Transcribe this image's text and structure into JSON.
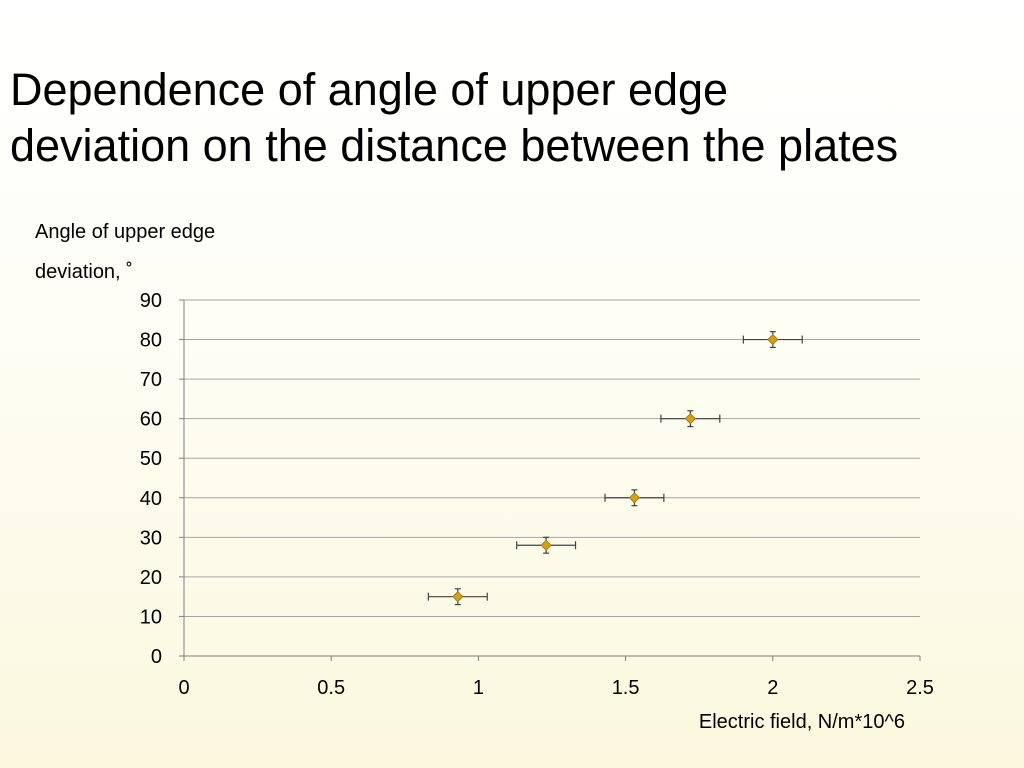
{
  "slide": {
    "title_lines": [
      "Dependence of angle of upper edge",
      "deviation on the distance between the plates"
    ]
  },
  "chart_data": {
    "type": "scatter",
    "xlabel": "Electric field, N/m*10^6",
    "ylabel_lines": [
      "Angle of upper edge",
      "deviation, ˚"
    ],
    "xlim": [
      0,
      2.5
    ],
    "ylim": [
      0,
      90
    ],
    "x_ticks": [
      0,
      0.5,
      1,
      1.5,
      2,
      2.5
    ],
    "y_ticks": [
      0,
      10,
      20,
      30,
      40,
      50,
      60,
      70,
      80,
      90
    ],
    "grid": {
      "horizontal": true,
      "vertical": false
    },
    "marker": "diamond",
    "colors": {
      "marker": "#d4a017",
      "marker_edge": "#9a7410",
      "error_bar": "#404040",
      "grid": "#a6a6a6"
    },
    "points": [
      {
        "x": 0.93,
        "y": 15,
        "xerr": 0.1,
        "yerr": 2
      },
      {
        "x": 1.23,
        "y": 28,
        "xerr": 0.1,
        "yerr": 2
      },
      {
        "x": 1.53,
        "y": 40,
        "xerr": 0.1,
        "yerr": 2
      },
      {
        "x": 1.72,
        "y": 60,
        "xerr": 0.1,
        "yerr": 2
      },
      {
        "x": 2.0,
        "y": 80,
        "xerr": 0.1,
        "yerr": 2
      }
    ]
  }
}
